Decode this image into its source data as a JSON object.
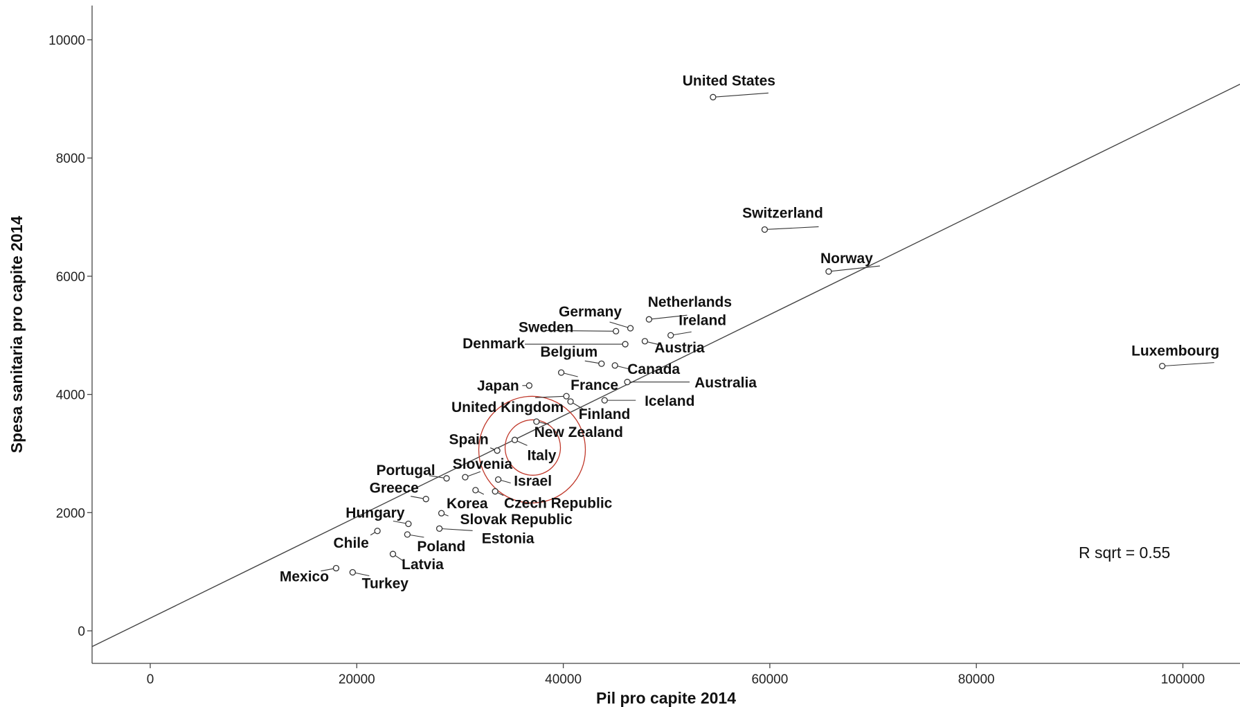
{
  "chart_data": {
    "type": "scatter",
    "xlabel": "Pil pro capite 2014",
    "ylabel": "Spesa sanitaria pro capite 2014",
    "xlim": [
      -5500,
      105000
    ],
    "ylim": [
      -250,
      10550
    ],
    "xticks": [
      0,
      20000,
      40000,
      60000,
      80000,
      100000
    ],
    "yticks": [
      0,
      2000,
      4000,
      6000,
      8000,
      10000
    ],
    "grid": false,
    "marker": "open-circle",
    "points": [
      {
        "label": "United States",
        "x": 54500,
        "y": 9030
      },
      {
        "label": "Switzerland",
        "x": 59500,
        "y": 6790
      },
      {
        "label": "Norway",
        "x": 65700,
        "y": 6080
      },
      {
        "label": "Luxembourg",
        "x": 98000,
        "y": 4480
      },
      {
        "label": "Netherlands",
        "x": 48300,
        "y": 5270
      },
      {
        "label": "Germany",
        "x": 46500,
        "y": 5120
      },
      {
        "label": "Sweden",
        "x": 45100,
        "y": 5070
      },
      {
        "label": "Ireland",
        "x": 50400,
        "y": 5000
      },
      {
        "label": "Denmark",
        "x": 46000,
        "y": 4850
      },
      {
        "label": "Austria",
        "x": 47900,
        "y": 4900
      },
      {
        "label": "Belgium",
        "x": 43700,
        "y": 4520
      },
      {
        "label": "Canada",
        "x": 45000,
        "y": 4490
      },
      {
        "label": "France",
        "x": 39800,
        "y": 4370
      },
      {
        "label": "Australia",
        "x": 46200,
        "y": 4210
      },
      {
        "label": "Japan",
        "x": 36700,
        "y": 4150
      },
      {
        "label": "United Kingdom",
        "x": 40300,
        "y": 3970
      },
      {
        "label": "Iceland",
        "x": 44000,
        "y": 3900
      },
      {
        "label": "Finland",
        "x": 40700,
        "y": 3880
      },
      {
        "label": "New Zealand",
        "x": 37400,
        "y": 3540
      },
      {
        "label": "Italy",
        "x": 35300,
        "y": 3230
      },
      {
        "label": "Spain",
        "x": 33600,
        "y": 3050
      },
      {
        "label": "Slovenia",
        "x": 30500,
        "y": 2600
      },
      {
        "label": "Portugal",
        "x": 28700,
        "y": 2580
      },
      {
        "label": "Israel",
        "x": 33700,
        "y": 2560
      },
      {
        "label": "Korea",
        "x": 31500,
        "y": 2380
      },
      {
        "label": "Czech Republic",
        "x": 33400,
        "y": 2360
      },
      {
        "label": "Greece",
        "x": 26700,
        "y": 2230
      },
      {
        "label": "Slovak Republic",
        "x": 28200,
        "y": 1990
      },
      {
        "label": "Hungary",
        "x": 25000,
        "y": 1810
      },
      {
        "label": "Estonia",
        "x": 28000,
        "y": 1730
      },
      {
        "label": "Chile",
        "x": 22000,
        "y": 1690
      },
      {
        "label": "Poland",
        "x": 24900,
        "y": 1630
      },
      {
        "label": "Latvia",
        "x": 23500,
        "y": 1300
      },
      {
        "label": "Mexico",
        "x": 18000,
        "y": 1060
      },
      {
        "label": "Turkey",
        "x": 19600,
        "y": 990
      }
    ],
    "fit_line": {
      "intercept": 215,
      "slope": 0.0856
    },
    "highlight": [
      "Italy"
    ],
    "annotation": "R sqrt = 0.55"
  }
}
